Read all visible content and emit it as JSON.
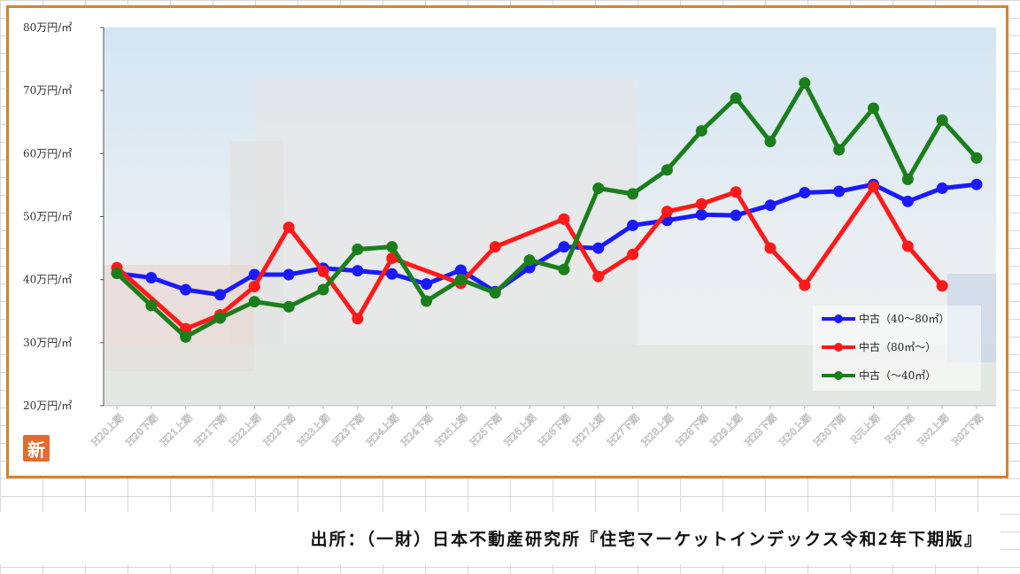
{
  "badge_text": "新",
  "source": "出所：（一財）日本不動産研究所『住宅マーケットインデックス令和2年下期版』",
  "chart_data": {
    "type": "line",
    "title": "",
    "xlabel": "",
    "ylabel": "",
    "ylim": [
      20,
      80
    ],
    "ytick_labels": [
      "20万円/㎡",
      "30万円/㎡",
      "40万円/㎡",
      "50万円/㎡",
      "60万円/㎡",
      "70万円/㎡",
      "80万円/㎡"
    ],
    "yticks": [
      20,
      30,
      40,
      50,
      60,
      70,
      80
    ],
    "categories": [
      "H20上期",
      "H20下期",
      "H21上期",
      "H21下期",
      "H22上期",
      "H22下期",
      "H23上期",
      "H23下期",
      "H24上期",
      "H24下期",
      "H25上期",
      "H25下期",
      "H26上期",
      "H26下期",
      "H27上期",
      "H27下期",
      "H28上期",
      "H28下期",
      "H29上期",
      "H29下期",
      "H30上期",
      "H30下期",
      "R元上期",
      "R元下期",
      "R02上期",
      "R02下期"
    ],
    "series": [
      {
        "name": "中古（40～80㎡）",
        "color": "#1a1aff",
        "values": [
          41.0,
          40.3,
          38.4,
          37.6,
          40.8,
          40.8,
          41.8,
          41.4,
          40.9,
          39.3,
          41.5,
          38.1,
          41.9,
          45.2,
          45.0,
          48.6,
          49.4,
          50.3,
          50.2,
          51.8,
          53.8,
          54.0,
          55.1,
          52.4,
          54.5,
          55.1
        ]
      },
      {
        "name": "中古（80㎡～）",
        "color": "#ff1a1a",
        "values": [
          41.9,
          null,
          32.2,
          34.4,
          38.9,
          48.3,
          41.3,
          33.8,
          43.4,
          null,
          39.4,
          45.2,
          null,
          49.6,
          40.5,
          44.0,
          50.8,
          52.0,
          53.9,
          45.0,
          39.1,
          null,
          54.7,
          45.3,
          39.0,
          null
        ]
      },
      {
        "name": "中古（～40㎡）",
        "color": "#1a7f1a",
        "values": [
          41.0,
          35.9,
          30.9,
          33.9,
          36.5,
          35.7,
          38.4,
          44.8,
          45.2,
          36.6,
          40.0,
          37.9,
          43.1,
          41.6,
          54.5,
          53.6,
          57.4,
          63.6,
          68.8,
          61.9,
          71.2,
          60.6,
          67.2,
          55.9,
          65.3,
          59.3
        ]
      }
    ],
    "legend_position": "bottom-right",
    "grid": false
  }
}
